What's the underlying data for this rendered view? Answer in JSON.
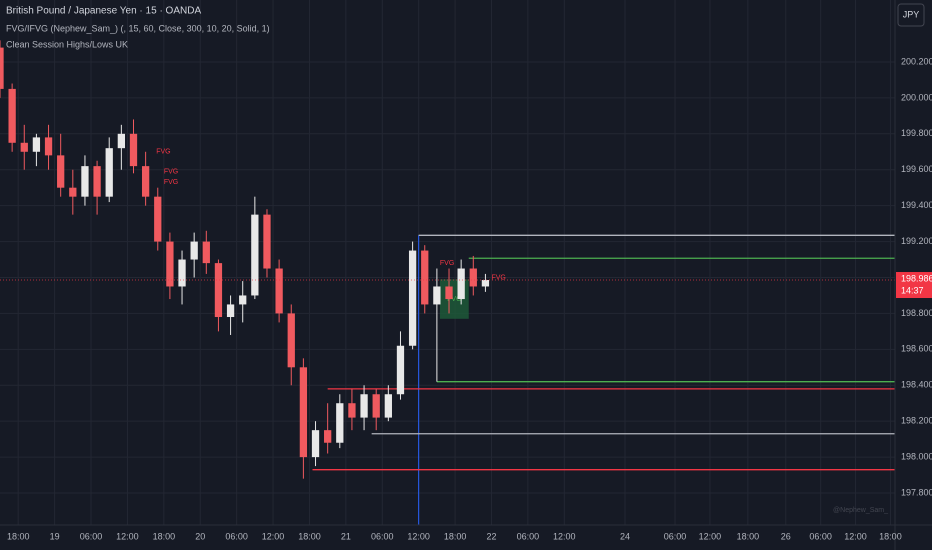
{
  "chart_data": {
    "type": "candlestick",
    "title": "British Pound / Japanese Yen · 15 · OANDA",
    "indicators": [
      "FVG/IFVG (Nephew_Sam_) (, 15, 60, Close, 300, 10, 20, Solid, 1)",
      "Clean Session Highs/Lows UK"
    ],
    "currency": "JPY",
    "watermark": "@Nephew_Sam_",
    "up_color": "#e8e8e8",
    "down_color": "#f05a5f",
    "x": [
      -12,
      -4,
      4,
      12,
      20,
      28,
      36,
      44,
      52,
      60,
      68,
      76,
      84,
      92,
      100,
      108,
      116,
      124,
      132,
      140,
      148,
      156,
      164,
      172,
      180,
      188,
      196,
      204,
      212,
      220,
      228,
      236,
      244,
      252,
      260,
      268,
      276,
      284,
      292,
      300,
      308
    ],
    "open": [
      200.28,
      200.05,
      199.75,
      199.7,
      199.78,
      199.68,
      199.5,
      199.45,
      199.62,
      199.45,
      199.72,
      199.8,
      199.62,
      199.45,
      199.2,
      198.95,
      199.1,
      199.2,
      199.08,
      198.78,
      198.85,
      198.9,
      199.35,
      199.05,
      198.8,
      198.5,
      198.0,
      198.15,
      198.08,
      198.3,
      198.22,
      198.35,
      198.22,
      198.35,
      198.62,
      199.15,
      198.85,
      198.95,
      198.88,
      199.05,
      198.95
    ],
    "high": [
      200.32,
      200.08,
      199.85,
      199.8,
      199.85,
      199.8,
      199.6,
      199.68,
      199.65,
      199.78,
      199.85,
      199.88,
      199.7,
      199.5,
      199.25,
      199.15,
      199.25,
      199.26,
      199.1,
      198.9,
      198.98,
      199.45,
      199.38,
      199.1,
      198.85,
      198.55,
      198.2,
      198.3,
      198.35,
      198.38,
      198.4,
      198.38,
      198.4,
      198.7,
      199.2,
      199.18,
      199.05,
      199.05,
      199.1,
      199.12,
      199.02
    ],
    "low": [
      200.0,
      199.7,
      199.6,
      199.62,
      199.6,
      199.45,
      199.35,
      199.4,
      199.35,
      199.42,
      199.6,
      199.58,
      199.4,
      199.15,
      198.88,
      198.85,
      199.0,
      199.02,
      198.7,
      198.68,
      198.75,
      198.88,
      199.0,
      198.75,
      198.4,
      197.88,
      197.95,
      198.02,
      198.05,
      198.15,
      198.15,
      198.15,
      198.2,
      198.32,
      198.6,
      198.8,
      198.42,
      198.8,
      198.85,
      198.9,
      198.92
    ],
    "close": [
      200.05,
      199.75,
      199.7,
      199.78,
      199.68,
      199.5,
      199.45,
      199.62,
      199.45,
      199.72,
      199.8,
      199.62,
      199.45,
      199.2,
      198.95,
      199.1,
      199.2,
      199.08,
      198.78,
      198.85,
      198.9,
      199.35,
      199.05,
      198.8,
      198.5,
      198.0,
      198.15,
      198.08,
      198.3,
      198.22,
      198.35,
      198.22,
      198.35,
      198.62,
      199.15,
      198.85,
      198.95,
      198.88,
      199.05,
      198.95,
      198.986
    ],
    "levels": [
      {
        "value": 199.235,
        "start": 264,
        "color": "#b2b5be"
      },
      {
        "value": 199.107,
        "start": 297,
        "color": "#4caf50"
      },
      {
        "value": 198.42,
        "start": 276,
        "color": "#4caf50"
      },
      {
        "value": 198.38,
        "start": 204,
        "color": "#f23645"
      },
      {
        "value": 198.13,
        "start": 233,
        "color": "#b2b5be"
      },
      {
        "value": 197.93,
        "start": 194,
        "color": "#f23645"
      }
    ],
    "marker_x": 264,
    "zones": [
      {
        "label": "FVG",
        "x0": 278,
        "x1": 297,
        "top": 198.99,
        "bottom": 198.77,
        "color": "#1e5c3a"
      }
    ],
    "annotations": [
      {
        "text": "FVG",
        "x": 91,
        "y": 199.7
      },
      {
        "text": "FVG",
        "x": 96,
        "y": 199.59
      },
      {
        "text": "FVG",
        "x": 96,
        "y": 199.53
      },
      {
        "text": "FVG",
        "x": 278,
        "y": 199.08
      },
      {
        "text": "FVG",
        "x": 312,
        "y": 199.0
      }
    ],
    "last_price": {
      "value": 198.986,
      "label": "198.986"
    },
    "countdown": "14:37",
    "xlim": [
      -12,
      578
    ],
    "ylim": [
      197.622,
      200.545
    ],
    "xticks": [
      {
        "value": 0,
        "label": "18:00"
      },
      {
        "value": 24,
        "label": "19"
      },
      {
        "value": 48,
        "label": "06:00"
      },
      {
        "value": 72,
        "label": "12:00"
      },
      {
        "value": 96,
        "label": "18:00"
      },
      {
        "value": 120,
        "label": "20"
      },
      {
        "value": 144,
        "label": "06:00"
      },
      {
        "value": 168,
        "label": "12:00"
      },
      {
        "value": 192,
        "label": "18:00"
      },
      {
        "value": 216,
        "label": "21"
      },
      {
        "value": 240,
        "label": "06:00"
      },
      {
        "value": 264,
        "label": "12:00"
      },
      {
        "value": 288,
        "label": "18:00"
      },
      {
        "value": 312,
        "label": "22"
      },
      {
        "value": 336,
        "label": "06:00"
      },
      {
        "value": 360,
        "label": "12:00"
      },
      {
        "value": 400,
        "label": "24"
      },
      {
        "value": 433,
        "label": "06:00"
      },
      {
        "value": 456,
        "label": "12:00"
      },
      {
        "value": 481,
        "label": "18:00"
      },
      {
        "value": 506,
        "label": "26"
      },
      {
        "value": 529,
        "label": "06:00"
      },
      {
        "value": 552,
        "label": "12:00"
      },
      {
        "value": 575,
        "label": "18:00"
      }
    ],
    "yticks": [
      {
        "value": 200.2,
        "label": "200.200"
      },
      {
        "value": 200.0,
        "label": "200.000"
      },
      {
        "value": 199.8,
        "label": "199.800"
      },
      {
        "value": 199.6,
        "label": "199.600"
      },
      {
        "value": 199.4,
        "label": "199.400"
      },
      {
        "value": 199.2,
        "label": "199.200"
      },
      {
        "value": 199.0,
        "label": "199.000"
      },
      {
        "value": 198.8,
        "label": "198.800"
      },
      {
        "value": 198.6,
        "label": "198.600"
      },
      {
        "value": 198.4,
        "label": "198.400"
      },
      {
        "value": 198.2,
        "label": "198.200"
      },
      {
        "value": 198.0,
        "label": "198.000"
      },
      {
        "value": 197.8,
        "label": "197.800"
      }
    ],
    "grid": true
  }
}
